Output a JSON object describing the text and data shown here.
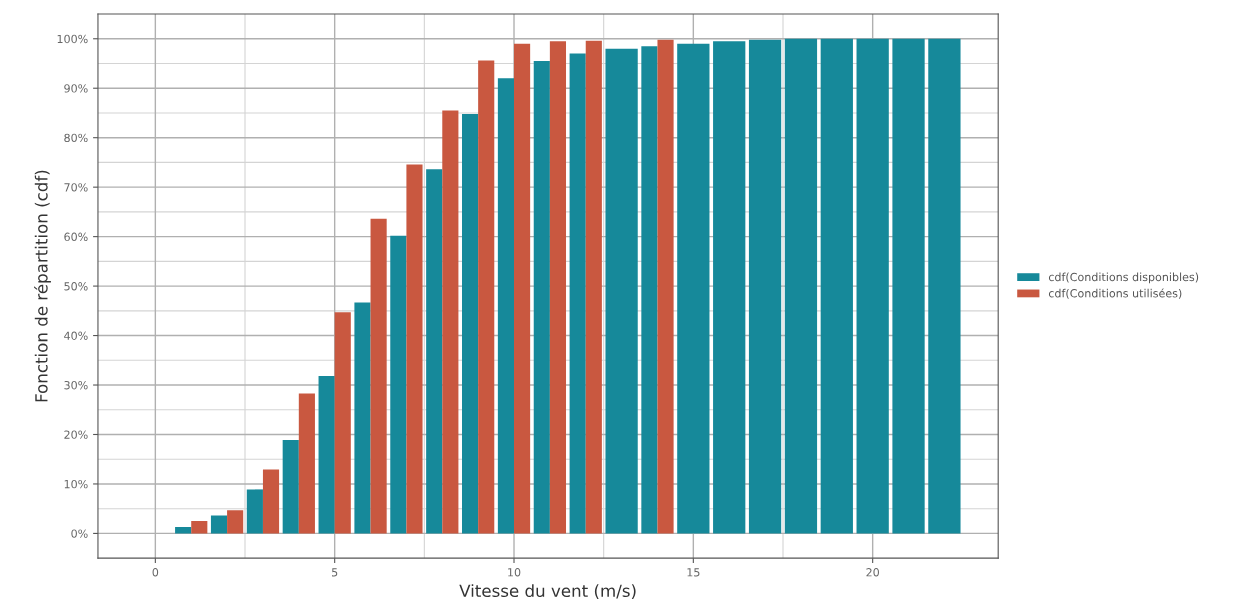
{
  "chart_data": {
    "type": "bar",
    "xlabel": "Vitesse du vent (m/s)",
    "ylabel": "Fonction de répartition (cdf)",
    "x": [
      1,
      2,
      3,
      4,
      5,
      6,
      7,
      8,
      9,
      10,
      11,
      12,
      13,
      14,
      15,
      16,
      17,
      18,
      19,
      20,
      21,
      22
    ],
    "series": [
      {
        "name": "cdf(Conditions disponibles)",
        "color": "#16899a",
        "values": [
          1.3,
          3.6,
          8.9,
          18.9,
          31.8,
          46.7,
          60.2,
          73.6,
          84.8,
          92.0,
          95.5,
          97.0,
          98.0,
          98.5,
          99.0,
          99.5,
          99.8,
          100,
          100,
          100,
          100,
          100
        ]
      },
      {
        "name": "cdf(Conditions utilisées)",
        "color": "#c95840",
        "values": [
          2.5,
          4.7,
          12.9,
          28.3,
          44.7,
          63.6,
          74.6,
          85.5,
          95.6,
          99.0,
          99.5,
          99.6,
          null,
          99.8,
          null,
          null,
          null,
          null,
          null,
          null,
          null,
          null
        ]
      }
    ],
    "xlim": [
      -1.6,
      23.5
    ],
    "xticks": [
      0,
      5,
      10,
      15,
      20
    ],
    "ylim": [
      -5,
      105
    ],
    "yticks": [
      {
        "value": 0,
        "label": "0%"
      },
      {
        "value": 10,
        "label": "10%"
      },
      {
        "value": 20,
        "label": "20%"
      },
      {
        "value": 30,
        "label": "30%"
      },
      {
        "value": 40,
        "label": "40%"
      },
      {
        "value": 50,
        "label": "50%"
      },
      {
        "value": 60,
        "label": "60%"
      },
      {
        "value": 70,
        "label": "70%"
      },
      {
        "value": 80,
        "label": "80%"
      },
      {
        "value": 90,
        "label": "90%"
      },
      {
        "value": 100,
        "label": "100%"
      }
    ],
    "grid": true,
    "legend": "right"
  }
}
